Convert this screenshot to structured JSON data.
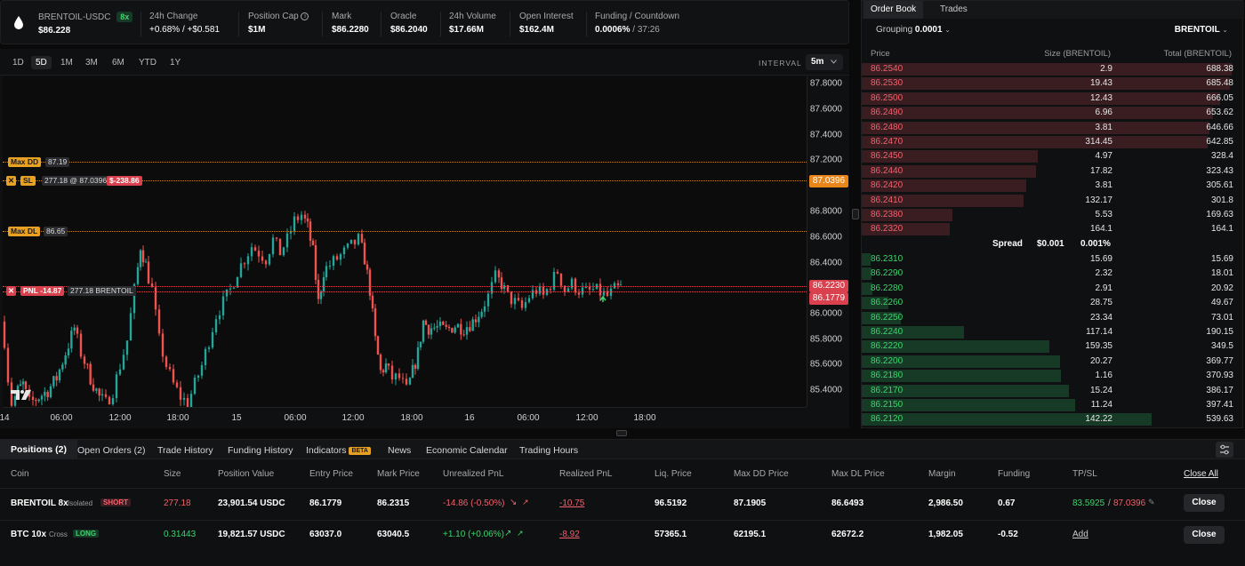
{
  "header": {
    "pair": "BRENTOIL-USDC",
    "leverage": "8x",
    "price": "$86.228",
    "stats": [
      {
        "label": "24h Change",
        "value": "+0.68% / +$0.581"
      },
      {
        "label": "Position Cap",
        "value": "$1M"
      },
      {
        "label": "Mark",
        "value": "$86.2280"
      },
      {
        "label": "Oracle",
        "value": "$86.2040"
      },
      {
        "label": "24h Volume",
        "value": "$17.66M"
      },
      {
        "label": "Open Interest",
        "value": "$162.4M"
      },
      {
        "label": "Funding / Countdown",
        "value": "0.0006%",
        "countdown": "/ 37:26"
      }
    ]
  },
  "timeframes": [
    "1D",
    "5D",
    "1M",
    "3M",
    "6M",
    "YTD",
    "1Y"
  ],
  "active_timeframe": "5D",
  "interval": {
    "label": "INTERVAL",
    "value": "5m"
  },
  "chart_data": {
    "type": "candlestick",
    "y_ticks": [
      "87.8000",
      "87.6000",
      "87.4000",
      "87.2000",
      "86.8000",
      "86.6000",
      "86.4000",
      "86.0000",
      "85.8000",
      "85.6000",
      "85.4000"
    ],
    "x_ticks": [
      "14",
      "06:00",
      "12:00",
      "18:00",
      "15",
      "06:00",
      "12:00",
      "18:00",
      "16",
      "06:00",
      "12:00",
      "18:00"
    ],
    "ylim": [
      85.27,
      87.9
    ],
    "overlays": {
      "max_dd": {
        "label": "Max DD",
        "value": "87.19"
      },
      "sl": {
        "label": "SL",
        "detail": "277.18 @ 87.0396",
        "pnl": "$-238.86",
        "axis_label": "87.0396"
      },
      "max_dl": {
        "label": "Max DL",
        "value": "86.65"
      },
      "pnl": {
        "label": "PNL -14.87",
        "detail": "277.18 BRENTOIL",
        "axis_mark": "86.2230",
        "axis_entry": "86.1779"
      }
    },
    "series": [
      {
        "x": 0,
        "y": 85.95
      },
      {
        "x": 4,
        "y": 85.8
      },
      {
        "x": 8,
        "y": 85.5
      },
      {
        "x": 12,
        "y": 85.3
      },
      {
        "x": 18,
        "y": 85.4
      },
      {
        "x": 24,
        "y": 85.45
      },
      {
        "x": 32,
        "y": 85.3
      },
      {
        "x": 42,
        "y": 85.35
      },
      {
        "x": 52,
        "y": 85.4
      },
      {
        "x": 62,
        "y": 85.5
      },
      {
        "x": 72,
        "y": 85.7
      },
      {
        "x": 82,
        "y": 85.9
      },
      {
        "x": 90,
        "y": 85.7
      },
      {
        "x": 100,
        "y": 85.5
      },
      {
        "x": 110,
        "y": 85.35
      },
      {
        "x": 118,
        "y": 85.3
      },
      {
        "x": 126,
        "y": 85.4
      },
      {
        "x": 134,
        "y": 85.6
      },
      {
        "x": 142,
        "y": 85.8
      },
      {
        "x": 150,
        "y": 86.2
      },
      {
        "x": 156,
        "y": 86.55
      },
      {
        "x": 162,
        "y": 86.4
      },
      {
        "x": 170,
        "y": 86.2
      },
      {
        "x": 178,
        "y": 85.8
      },
      {
        "x": 186,
        "y": 85.6
      },
      {
        "x": 194,
        "y": 85.45
      },
      {
        "x": 202,
        "y": 85.35
      },
      {
        "x": 210,
        "y": 85.3
      },
      {
        "x": 218,
        "y": 85.45
      },
      {
        "x": 226,
        "y": 85.6
      },
      {
        "x": 234,
        "y": 85.8
      },
      {
        "x": 242,
        "y": 86.0
      },
      {
        "x": 250,
        "y": 86.1
      },
      {
        "x": 258,
        "y": 86.2
      },
      {
        "x": 266,
        "y": 86.35
      },
      {
        "x": 274,
        "y": 86.45
      },
      {
        "x": 282,
        "y": 86.55
      },
      {
        "x": 290,
        "y": 86.5
      },
      {
        "x": 298,
        "y": 86.45
      },
      {
        "x": 306,
        "y": 86.6
      },
      {
        "x": 314,
        "y": 86.5
      },
      {
        "x": 322,
        "y": 86.6
      },
      {
        "x": 330,
        "y": 86.75
      },
      {
        "x": 338,
        "y": 86.8
      },
      {
        "x": 344,
        "y": 86.7
      },
      {
        "x": 350,
        "y": 86.5
      },
      {
        "x": 356,
        "y": 86.1
      },
      {
        "x": 362,
        "y": 86.35
      },
      {
        "x": 370,
        "y": 86.4
      },
      {
        "x": 378,
        "y": 86.45
      },
      {
        "x": 386,
        "y": 86.5
      },
      {
        "x": 394,
        "y": 86.55
      },
      {
        "x": 402,
        "y": 86.6
      },
      {
        "x": 408,
        "y": 86.45
      },
      {
        "x": 414,
        "y": 86.2
      },
      {
        "x": 420,
        "y": 85.8
      },
      {
        "x": 426,
        "y": 85.55
      },
      {
        "x": 432,
        "y": 85.6
      },
      {
        "x": 440,
        "y": 85.5
      },
      {
        "x": 448,
        "y": 85.5
      },
      {
        "x": 456,
        "y": 85.4
      },
      {
        "x": 462,
        "y": 85.55
      },
      {
        "x": 468,
        "y": 85.7
      },
      {
        "x": 474,
        "y": 85.95
      },
      {
        "x": 480,
        "y": 85.9
      },
      {
        "x": 490,
        "y": 85.9
      },
      {
        "x": 500,
        "y": 85.88
      },
      {
        "x": 510,
        "y": 85.92
      },
      {
        "x": 520,
        "y": 85.9
      },
      {
        "x": 530,
        "y": 85.95
      },
      {
        "x": 540,
        "y": 86.05
      },
      {
        "x": 548,
        "y": 86.15
      },
      {
        "x": 556,
        "y": 86.3
      },
      {
        "x": 562,
        "y": 86.25
      },
      {
        "x": 570,
        "y": 86.15
      },
      {
        "x": 578,
        "y": 86.1
      },
      {
        "x": 586,
        "y": 86.05
      },
      {
        "x": 594,
        "y": 86.15
      },
      {
        "x": 602,
        "y": 86.2
      },
      {
        "x": 610,
        "y": 86.15
      },
      {
        "x": 618,
        "y": 86.25
      },
      {
        "x": 626,
        "y": 86.35
      },
      {
        "x": 634,
        "y": 86.2
      },
      {
        "x": 642,
        "y": 86.25
      },
      {
        "x": 650,
        "y": 86.2
      },
      {
        "x": 658,
        "y": 86.18
      },
      {
        "x": 666,
        "y": 86.2
      },
      {
        "x": 674,
        "y": 86.18
      },
      {
        "x": 682,
        "y": 86.15
      },
      {
        "x": 690,
        "y": 86.2
      },
      {
        "x": 696,
        "y": 86.22
      }
    ]
  },
  "orderbook": {
    "tabs": [
      "Order Book",
      "Trades"
    ],
    "grouping_label": "Grouping",
    "grouping_value": "0.0001",
    "symbol": "BRENTOIL",
    "columns": [
      "Price",
      "Size (BRENTOIL)",
      "Total (BRENTOIL)"
    ],
    "asks": [
      {
        "price": "86.2540",
        "size": "2.9",
        "total": "688.38",
        "depth": 1.0
      },
      {
        "price": "86.2530",
        "size": "19.43",
        "total": "685.48",
        "depth": 0.996
      },
      {
        "price": "86.2500",
        "size": "12.43",
        "total": "666.05",
        "depth": 0.968
      },
      {
        "price": "86.2490",
        "size": "6.96",
        "total": "653.62",
        "depth": 0.95
      },
      {
        "price": "86.2480",
        "size": "3.81",
        "total": "646.66",
        "depth": 0.94
      },
      {
        "price": "86.2470",
        "size": "314.45",
        "total": "642.85",
        "depth": 0.934
      },
      {
        "price": "86.2450",
        "size": "4.97",
        "total": "328.4",
        "depth": 0.477
      },
      {
        "price": "86.2440",
        "size": "17.82",
        "total": "323.43",
        "depth": 0.47
      },
      {
        "price": "86.2420",
        "size": "3.81",
        "total": "305.61",
        "depth": 0.444
      },
      {
        "price": "86.2410",
        "size": "132.17",
        "total": "301.8",
        "depth": 0.438
      },
      {
        "price": "86.2380",
        "size": "5.53",
        "total": "169.63",
        "depth": 0.246
      },
      {
        "price": "86.2320",
        "size": "164.1",
        "total": "164.1",
        "depth": 0.238
      }
    ],
    "spread": {
      "label": "Spread",
      "value": "$0.001",
      "pct": "0.001%"
    },
    "bids": [
      {
        "price": "86.2310",
        "size": "15.69",
        "total": "15.69",
        "depth": 0.023
      },
      {
        "price": "86.2290",
        "size": "2.32",
        "total": "18.01",
        "depth": 0.026
      },
      {
        "price": "86.2280",
        "size": "2.91",
        "total": "20.92",
        "depth": 0.03
      },
      {
        "price": "86.2260",
        "size": "28.75",
        "total": "49.67",
        "depth": 0.072
      },
      {
        "price": "86.2250",
        "size": "23.34",
        "total": "73.01",
        "depth": 0.106
      },
      {
        "price": "86.2240",
        "size": "117.14",
        "total": "190.15",
        "depth": 0.276
      },
      {
        "price": "86.2220",
        "size": "159.35",
        "total": "349.5",
        "depth": 0.508
      },
      {
        "price": "86.2200",
        "size": "20.27",
        "total": "369.77",
        "depth": 0.537
      },
      {
        "price": "86.2180",
        "size": "1.16",
        "total": "370.93",
        "depth": 0.539
      },
      {
        "price": "86.2170",
        "size": "15.24",
        "total": "386.17",
        "depth": 0.561
      },
      {
        "price": "86.2150",
        "size": "11.24",
        "total": "397.41",
        "depth": 0.577
      },
      {
        "price": "86.2120",
        "size": "142.22",
        "total": "539.63",
        "depth": 0.784
      }
    ]
  },
  "bottom": {
    "tabs": [
      "Positions (2)",
      "Open Orders (2)",
      "Trade History",
      "Funding History",
      "Indicators",
      "News",
      "Economic Calendar",
      "Trading Hours"
    ],
    "beta_badge": "BETA",
    "columns": [
      "Coin",
      "Size",
      "Position Value",
      "Entry Price",
      "Mark Price",
      "Unrealized PnL",
      "Realized PnL",
      "Liq. Price",
      "Max DD Price",
      "Max DL Price",
      "Margin",
      "Funding",
      "TP/SL",
      "Close All"
    ],
    "rows": [
      {
        "coin": "BRENTOIL 8x",
        "mode": "Isolated",
        "side": "SHORT",
        "size": "277.18",
        "value": "23,901.54 USDC",
        "entry": "86.1779",
        "mark": "86.2315",
        "upnl": "-14.86 (-0.50%)",
        "rpnl": "-10.75",
        "liq": "96.5192",
        "maxdd": "87.1905",
        "maxdl": "86.6493",
        "margin": "2,986.50",
        "funding": "0.67",
        "tp": "83.5925",
        "sl": "87.0396",
        "close": "Close"
      },
      {
        "coin": "BTC 10x",
        "mode": "Cross",
        "side": "LONG",
        "size": "0.31443",
        "value": "19,821.57 USDC",
        "entry": "63037.0",
        "mark": "63040.5",
        "upnl": "+1.10 (+0.06%)",
        "rpnl": "-8.92",
        "liq": "57365.1",
        "maxdd": "62195.1",
        "maxdl": "62672.2",
        "margin": "1,982.05",
        "funding": "-0.52",
        "tpsl_add": "Add",
        "close": "Close"
      }
    ]
  },
  "colors": {
    "up": "#26a69a",
    "down": "#ef5350",
    "ask_bar": "#3a1d21",
    "bid_bar": "#163a26",
    "accent_orange": "#f5a524"
  }
}
